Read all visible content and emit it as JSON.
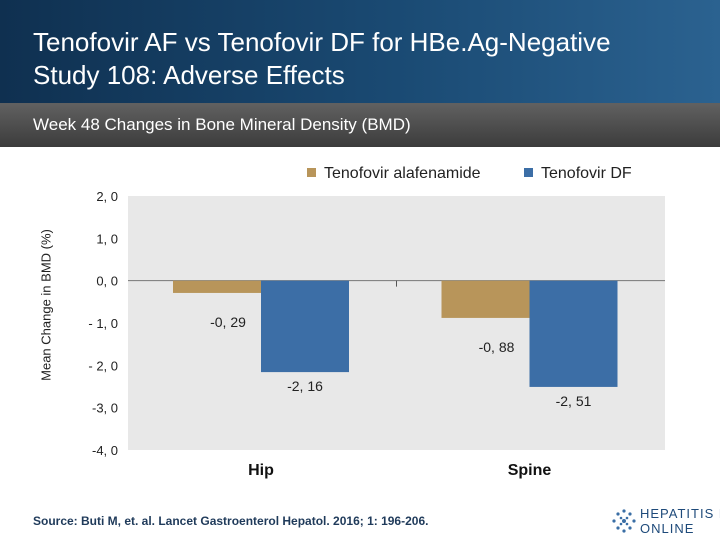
{
  "header": {
    "title_line1": "Tenofovir AF vs Tenofovir DF for HBe.Ag-Negative",
    "title_line2": "Study 108: Adverse Effects"
  },
  "subtitle": "Week 48 Changes in Bone Mineral Density (BMD)",
  "chart_data": {
    "type": "bar",
    "categories": [
      "Hip",
      "Spine"
    ],
    "series": [
      {
        "name": "Tenofovir alafenamide",
        "color": "#b8955a",
        "values": [
          -0.29,
          -0.88
        ],
        "labels": [
          "-0, 29",
          "-0, 88"
        ]
      },
      {
        "name": "Tenofovir DF",
        "color": "#3c6ea6",
        "values": [
          -2.16,
          -2.51
        ],
        "labels": [
          "-2, 16",
          "-2, 51"
        ]
      }
    ],
    "ylabel": "Mean Change in BMD (%)",
    "ylim": [
      -4.0,
      2.0
    ],
    "yticks": [
      2.0,
      1.0,
      0.0,
      -1.0,
      -2.0,
      -3.0,
      -4.0
    ],
    "ytick_labels": [
      "2, 0",
      "1, 0",
      "0, 0",
      "- 1, 0",
      "- 2, 0",
      "-3, 0",
      "-4, 0"
    ],
    "legend_position": "top-right",
    "grid": false
  },
  "source": "Source: Buti M, et. al. Lancet Gastroenterol Hepatol. 2016; 1: 196-206.",
  "logo": {
    "line1": "HEPATITIS B",
    "line2": "ONLINE"
  }
}
